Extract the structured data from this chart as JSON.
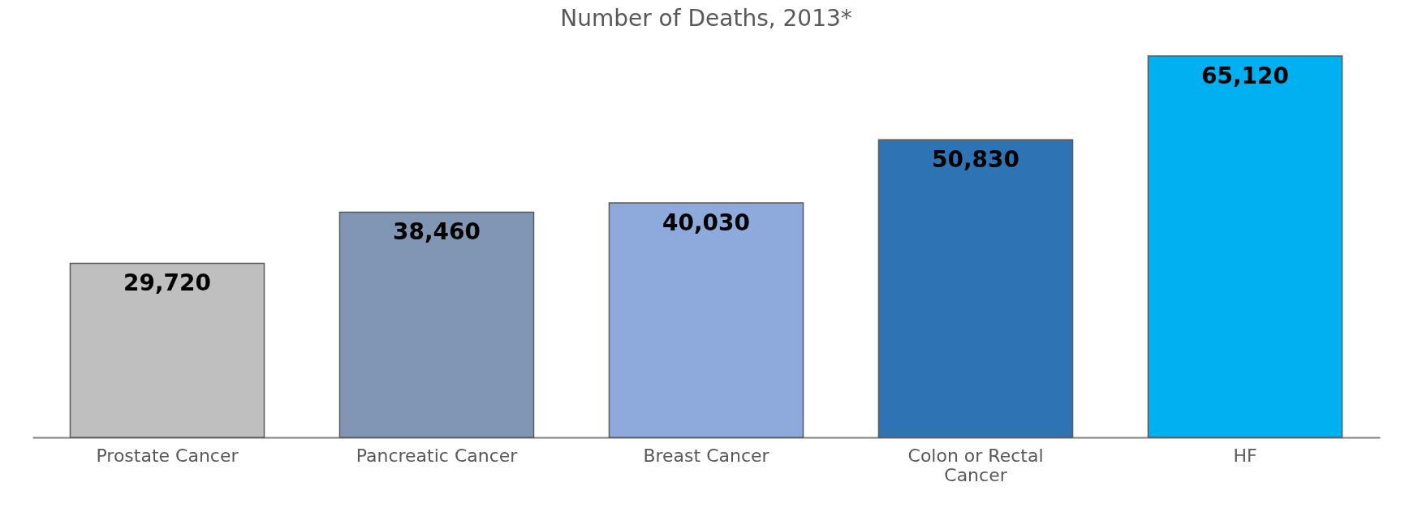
{
  "chart_data": {
    "type": "bar",
    "title": "Number of Deaths, 2013*",
    "categories": [
      "Prostate Cancer",
      "Pancreatic Cancer",
      "Breast Cancer",
      "Colon or Rectal Cancer",
      "HF"
    ],
    "values": [
      29720,
      38460,
      40030,
      50830,
      65120
    ],
    "value_labels": [
      "29,720",
      "38,460",
      "40,030",
      "50,830",
      "65,120"
    ],
    "colors": [
      "#bfbfbf",
      "#8096b4",
      "#8eaadc",
      "#2e74b5",
      "#00b0f0"
    ],
    "grid": false
  }
}
